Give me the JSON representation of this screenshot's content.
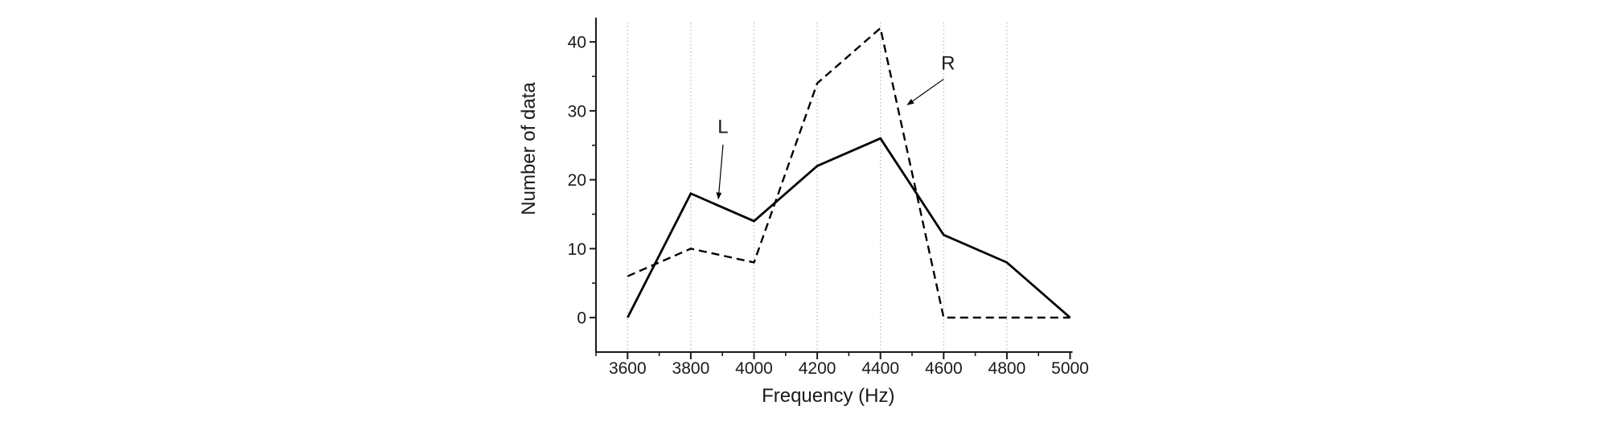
{
  "chart_data": {
    "type": "line",
    "title": "",
    "xlabel": "Frequency (Hz)",
    "ylabel": "Number of data",
    "x": [
      3600,
      3800,
      4000,
      4200,
      4400,
      4600,
      4800,
      5000
    ],
    "series": [
      {
        "name": "L",
        "style": "solid",
        "values": [
          0,
          18,
          14,
          22,
          26,
          12,
          8,
          0
        ]
      },
      {
        "name": "R",
        "style": "dashed",
        "values": [
          6,
          10,
          8,
          34,
          42,
          0,
          0,
          0
        ]
      }
    ],
    "xlim": [
      3500,
      5000
    ],
    "ylim": [
      -5,
      45
    ],
    "x_axis": {
      "major_ticks": [
        3600,
        3800,
        4000,
        4200,
        4400,
        4600,
        4800,
        5000
      ],
      "major_tick_labels": [
        "3600",
        "3800",
        "4000",
        "4200",
        "4400",
        "4600",
        "4800",
        "5000"
      ],
      "minor_ticks": [
        3500,
        3700,
        3900,
        4100,
        4300,
        4500,
        4700,
        4900
      ]
    },
    "y_axis": {
      "major_ticks": [
        0,
        10,
        20,
        30,
        40
      ],
      "major_tick_labels": [
        "0",
        "10",
        "20",
        "30",
        "40"
      ],
      "minor_ticks": [
        5,
        15,
        25,
        35
      ]
    },
    "grid": {
      "vertical_dotted_at": [
        3600,
        3800,
        4000,
        4200,
        4400,
        4600,
        4800
      ],
      "horizontal": false
    },
    "legend_position": "none (inline arrow annotations)",
    "annotations": [
      {
        "text": "L",
        "x": 3902,
        "y": 27.8,
        "arrow": {
          "x1": 3902,
          "y1": 25.1,
          "x2": 3887,
          "y2": 17.1
        }
      },
      {
        "text": "R",
        "x": 4614,
        "y": 37.0,
        "arrow": {
          "x1": 4600,
          "y1": 34.6,
          "x2": 4483,
          "y2": 30.8
        }
      }
    ],
    "colors": {
      "line": "#000000",
      "axis": "#1a1a1a",
      "text": "#1a1a1a",
      "grid": "#ababab",
      "background": "#ffffff"
    }
  }
}
